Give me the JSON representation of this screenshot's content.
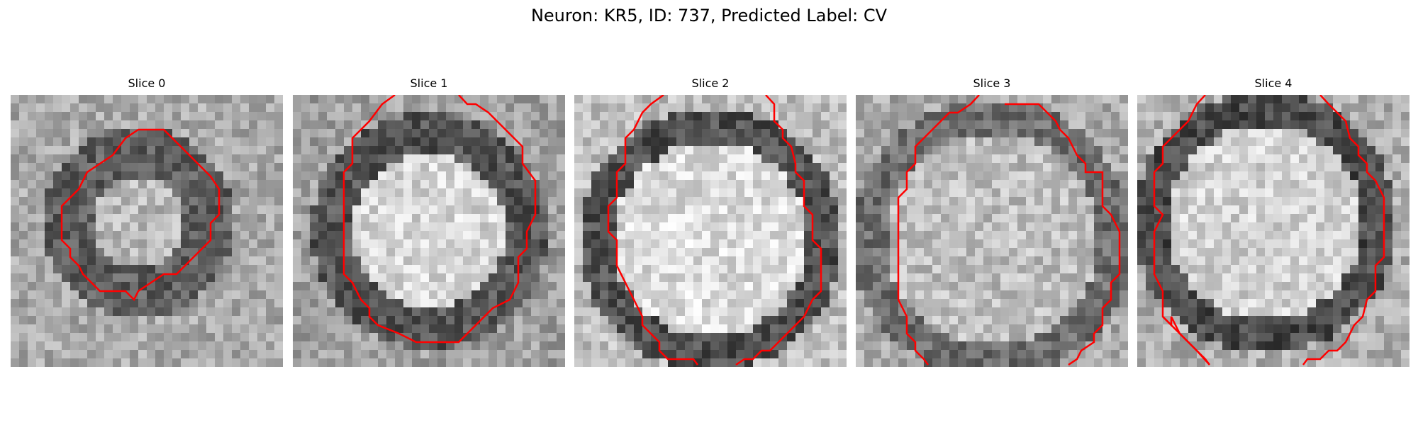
{
  "figure": {
    "title": "Neuron: KR5, ID: 737, Predicted Label: CV"
  },
  "slices": [
    {
      "title": "Slice 0"
    },
    {
      "title": "Slice 1"
    },
    {
      "title": "Slice 2"
    },
    {
      "title": "Slice 3"
    },
    {
      "title": "Slice 4"
    }
  ],
  "colors": {
    "contour": "#ff0000",
    "background": "#ffffff"
  }
}
